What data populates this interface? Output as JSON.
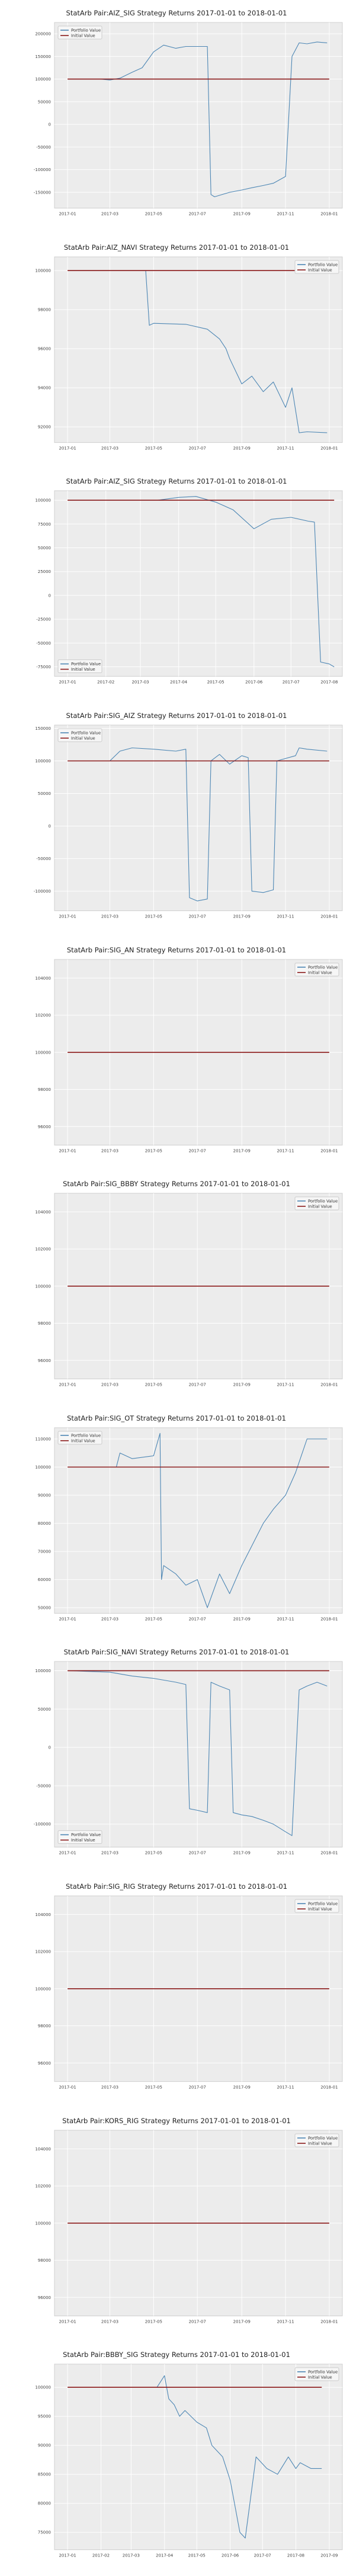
{
  "chart_data": [
    {
      "type": "line",
      "title": "StatArb Pair:AIZ_SIG Strategy Returns 2017-01-01 to 2018-01-01",
      "x_ticks": [
        "2017-01",
        "2017-03",
        "2017-05",
        "2017-07",
        "2017-09",
        "2017-11",
        "2018-01"
      ],
      "y_ticks": [
        "200000",
        "150000",
        "100000",
        "50000",
        "0",
        "-50000",
        "-100000",
        "-150000"
      ],
      "y_tick_values": [
        200000,
        150000,
        100000,
        50000,
        0,
        -50000,
        -100000,
        -150000
      ],
      "ylim": [
        -185000,
        225000
      ],
      "legend": {
        "position": "top-left",
        "entries": [
          "Portfolio Value",
          "Initial Value"
        ]
      },
      "initial_value": 100000,
      "grid": true,
      "series": [
        {
          "name": "Portfolio Value",
          "x": [
            "2017-01-03",
            "2017-02-15",
            "2017-03-01",
            "2017-03-15",
            "2017-04-01",
            "2017-04-15",
            "2017-05-01",
            "2017-05-15",
            "2017-06-01",
            "2017-06-15",
            "2017-07-01",
            "2017-07-15",
            "2017-07-20",
            "2017-07-25",
            "2017-08-15",
            "2017-09-01",
            "2017-09-15",
            "2017-10-01",
            "2017-10-15",
            "2017-11-01",
            "2017-11-10",
            "2017-11-20",
            "2017-12-01",
            "2017-12-15",
            "2017-12-29"
          ],
          "y": [
            100000,
            100000,
            98000,
            102000,
            115000,
            125000,
            160000,
            175000,
            168000,
            172000,
            172000,
            172000,
            -155000,
            -160000,
            -150000,
            -145000,
            -140000,
            -135000,
            -130000,
            -115000,
            150000,
            180000,
            178000,
            182000,
            180000
          ]
        },
        {
          "name": "Initial Value",
          "x": [
            "2017-01-01",
            "2018-01-01"
          ],
          "y": [
            100000,
            100000
          ]
        }
      ]
    },
    {
      "type": "line",
      "title": "StatArb Pair:AIZ_NAVI Strategy Returns 2017-01-01 to 2018-01-01",
      "x_ticks": [
        "2017-01",
        "2017-03",
        "2017-05",
        "2017-07",
        "2017-09",
        "2017-11",
        "2018-01"
      ],
      "y_ticks": [
        "100000",
        "98000",
        "96000",
        "94000",
        "92000"
      ],
      "y_tick_values": [
        100000,
        98000,
        96000,
        94000,
        92000
      ],
      "ylim": [
        91200,
        100700
      ],
      "legend": {
        "position": "top-right",
        "entries": [
          "Portfolio Value",
          "Initial Value"
        ]
      },
      "initial_value": 100000,
      "grid": true,
      "series": [
        {
          "name": "Portfolio Value",
          "x": [
            "2017-01-03",
            "2017-04-20",
            "2017-04-25",
            "2017-05-01",
            "2017-06-15",
            "2017-07-15",
            "2017-08-01",
            "2017-08-10",
            "2017-08-15",
            "2017-09-01",
            "2017-09-15",
            "2017-10-01",
            "2017-10-15",
            "2017-11-01",
            "2017-11-10",
            "2017-11-20",
            "2017-12-01",
            "2017-12-29"
          ],
          "y": [
            100000,
            100000,
            97200,
            97300,
            97250,
            97000,
            96500,
            96000,
            95500,
            94200,
            94600,
            93800,
            94300,
            93000,
            94000,
            91700,
            91750,
            91700
          ]
        },
        {
          "name": "Initial Value",
          "x": [
            "2017-01-01",
            "2018-01-01"
          ],
          "y": [
            100000,
            100000
          ]
        }
      ]
    },
    {
      "type": "line",
      "title": "StatArb Pair:AIZ_SIG Strategy Returns 2017-01-01 to 2018-01-01",
      "x_ticks": [
        "2017-01",
        "2017-02",
        "2017-03",
        "2017-04",
        "2017-05",
        "2017-06",
        "2017-07",
        "2017-08"
      ],
      "y_ticks": [
        "100000",
        "75000",
        "50000",
        "25000",
        "0",
        "-25000",
        "-50000",
        "-75000"
      ],
      "y_tick_values": [
        100000,
        75000,
        50000,
        25000,
        0,
        -25000,
        -50000,
        -75000
      ],
      "ylim": [
        -85000,
        110000
      ],
      "legend": {
        "position": "bottom-left",
        "entries": [
          "Portfolio Value",
          "Initial Value"
        ]
      },
      "initial_value": 100000,
      "grid": true,
      "series": [
        {
          "name": "Portfolio Value",
          "x": [
            "2017-01-03",
            "2017-03-15",
            "2017-04-01",
            "2017-04-15",
            "2017-05-01",
            "2017-05-15",
            "2017-06-01",
            "2017-06-15",
            "2017-07-01",
            "2017-07-15",
            "2017-07-20",
            "2017-07-25",
            "2017-08-01",
            "2017-08-05"
          ],
          "y": [
            100000,
            100000,
            103000,
            104000,
            98000,
            90000,
            70000,
            80000,
            82000,
            78000,
            77000,
            -70000,
            -72000,
            -75000
          ]
        },
        {
          "name": "Initial Value",
          "x": [
            "2017-01-01",
            "2017-08-05"
          ],
          "y": [
            100000,
            100000
          ]
        }
      ]
    },
    {
      "type": "line",
      "title": "StatArb Pair:SIG_AIZ Strategy Returns 2017-01-01 to 2018-01-01",
      "x_ticks": [
        "2017-01",
        "2017-03",
        "2017-05",
        "2017-07",
        "2017-09",
        "2017-11",
        "2018-01"
      ],
      "y_ticks": [
        "150000",
        "100000",
        "50000",
        "0",
        "-50000",
        "-100000"
      ],
      "y_tick_values": [
        150000,
        100000,
        50000,
        0,
        -50000,
        -100000
      ],
      "ylim": [
        -130000,
        155000
      ],
      "legend": {
        "position": "top-left",
        "entries": [
          "Portfolio Value",
          "Initial Value"
        ]
      },
      "initial_value": 100000,
      "grid": true,
      "series": [
        {
          "name": "Portfolio Value",
          "x": [
            "2017-01-03",
            "2017-03-01",
            "2017-03-15",
            "2017-04-01",
            "2017-05-01",
            "2017-06-01",
            "2017-06-15",
            "2017-06-20",
            "2017-07-01",
            "2017-07-15",
            "2017-07-20",
            "2017-08-01",
            "2017-08-15",
            "2017-09-01",
            "2017-09-10",
            "2017-09-15",
            "2017-10-01",
            "2017-10-15",
            "2017-10-20",
            "2017-11-15",
            "2017-11-20",
            "2017-12-01",
            "2017-12-29"
          ],
          "y": [
            100000,
            100000,
            115000,
            120000,
            118000,
            115000,
            118000,
            -110000,
            -115000,
            -112000,
            100000,
            110000,
            95000,
            108000,
            105000,
            -100000,
            -102000,
            -98000,
            100000,
            108000,
            120000,
            118000,
            115000
          ]
        },
        {
          "name": "Initial Value",
          "x": [
            "2017-01-01",
            "2018-01-01"
          ],
          "y": [
            100000,
            100000
          ]
        }
      ]
    },
    {
      "type": "line",
      "title": "StatArb Pair:SIG_AN Strategy Returns 2017-01-01 to 2018-01-01",
      "x_ticks": [
        "2017-01",
        "2017-03",
        "2017-05",
        "2017-07",
        "2017-09",
        "2017-11",
        "2018-01"
      ],
      "y_ticks": [
        "104000",
        "102000",
        "100000",
        "98000",
        "96000"
      ],
      "y_tick_values": [
        104000,
        102000,
        100000,
        98000,
        96000
      ],
      "ylim": [
        95000,
        105000
      ],
      "legend": {
        "position": "top-right",
        "entries": [
          "Portfolio Value",
          "Initial Value"
        ]
      },
      "initial_value": 100000,
      "grid": true,
      "series": [
        {
          "name": "Portfolio Value",
          "x": [
            "2017-01-03",
            "2017-12-29"
          ],
          "y": [
            100000,
            100000
          ]
        },
        {
          "name": "Initial Value",
          "x": [
            "2017-01-01",
            "2018-01-01"
          ],
          "y": [
            100000,
            100000
          ]
        }
      ]
    },
    {
      "type": "line",
      "title": "StatArb Pair:SIG_BBBY Strategy Returns 2017-01-01 to 2018-01-01",
      "x_ticks": [
        "2017-01",
        "2017-03",
        "2017-05",
        "2017-07",
        "2017-09",
        "2017-11",
        "2018-01"
      ],
      "y_ticks": [
        "104000",
        "102000",
        "100000",
        "98000",
        "96000"
      ],
      "y_tick_values": [
        104000,
        102000,
        100000,
        98000,
        96000
      ],
      "ylim": [
        95000,
        105000
      ],
      "legend": {
        "position": "top-right",
        "entries": [
          "Portfolio Value",
          "Initial Value"
        ]
      },
      "initial_value": 100000,
      "grid": true,
      "series": [
        {
          "name": "Portfolio Value",
          "x": [
            "2017-01-03",
            "2017-12-29"
          ],
          "y": [
            100000,
            100000
          ]
        },
        {
          "name": "Initial Value",
          "x": [
            "2017-01-01",
            "2018-01-01"
          ],
          "y": [
            100000,
            100000
          ]
        }
      ]
    },
    {
      "type": "line",
      "title": "StatArb Pair:SIG_OT Strategy Returns 2017-01-01 to 2018-01-01",
      "x_ticks": [
        "2017-01",
        "2017-03",
        "2017-05",
        "2017-07",
        "2017-09",
        "2017-11",
        "2018-01"
      ],
      "y_ticks": [
        "110000",
        "100000",
        "90000",
        "80000",
        "70000",
        "60000",
        "50000"
      ],
      "y_tick_values": [
        110000,
        100000,
        90000,
        80000,
        70000,
        60000,
        50000
      ],
      "ylim": [
        48000,
        114000
      ],
      "legend": {
        "position": "top-left",
        "entries": [
          "Portfolio Value",
          "Initial Value"
        ]
      },
      "initial_value": 100000,
      "grid": true,
      "series": [
        {
          "name": "Portfolio Value",
          "x": [
            "2017-01-03",
            "2017-03-10",
            "2017-03-15",
            "2017-04-01",
            "2017-05-01",
            "2017-05-10",
            "2017-05-12",
            "2017-05-15",
            "2017-06-01",
            "2017-06-15",
            "2017-07-01",
            "2017-07-15",
            "2017-08-01",
            "2017-08-15",
            "2017-09-01",
            "2017-09-15",
            "2017-10-01",
            "2017-10-15",
            "2017-11-01",
            "2017-11-15",
            "2017-12-01",
            "2017-12-29"
          ],
          "y": [
            100000,
            100000,
            105000,
            103000,
            104000,
            112000,
            60000,
            65000,
            62000,
            58000,
            60000,
            50000,
            62000,
            55000,
            65000,
            72000,
            80000,
            85000,
            90000,
            98000,
            110000,
            110000
          ]
        },
        {
          "name": "Initial Value",
          "x": [
            "2017-01-01",
            "2018-01-01"
          ],
          "y": [
            100000,
            100000
          ]
        }
      ]
    },
    {
      "type": "line",
      "title": "StatArb Pair:SIG_NAVI Strategy Returns 2017-01-01 to 2018-01-01",
      "x_ticks": [
        "2017-01",
        "2017-03",
        "2017-05",
        "2017-07",
        "2017-09",
        "2017-11",
        "2018-01"
      ],
      "y_ticks": [
        "100000",
        "50000",
        "0",
        "-50000",
        "-100000"
      ],
      "y_tick_values": [
        100000,
        50000,
        0,
        -50000,
        -100000
      ],
      "ylim": [
        -130000,
        112000
      ],
      "legend": {
        "position": "bottom-left",
        "entries": [
          "Portfolio Value",
          "Initial Value"
        ]
      },
      "initial_value": 100000,
      "grid": true,
      "series": [
        {
          "name": "Portfolio Value",
          "x": [
            "2017-01-03",
            "2017-03-01",
            "2017-04-01",
            "2017-05-01",
            "2017-06-01",
            "2017-06-15",
            "2017-06-20",
            "2017-07-01",
            "2017-07-15",
            "2017-07-20",
            "2017-08-01",
            "2017-08-15",
            "2017-08-20",
            "2017-09-01",
            "2017-09-15",
            "2017-10-01",
            "2017-10-15",
            "2017-11-01",
            "2017-11-10",
            "2017-11-20",
            "2017-12-01",
            "2017-12-15",
            "2017-12-29"
          ],
          "y": [
            100000,
            98000,
            93000,
            90000,
            85000,
            82000,
            -80000,
            -82000,
            -85000,
            85000,
            80000,
            75000,
            -85000,
            -88000,
            -90000,
            -95000,
            -100000,
            -110000,
            -115000,
            75000,
            80000,
            85000,
            80000
          ]
        },
        {
          "name": "Initial Value",
          "x": [
            "2017-01-01",
            "2018-01-01"
          ],
          "y": [
            100000,
            100000
          ]
        }
      ]
    },
    {
      "type": "line",
      "title": "StatArb Pair:SIG_RIG Strategy Returns 2017-01-01 to 2018-01-01",
      "x_ticks": [
        "2017-01",
        "2017-03",
        "2017-05",
        "2017-07",
        "2017-09",
        "2017-11",
        "2018-01"
      ],
      "y_ticks": [
        "104000",
        "102000",
        "100000",
        "98000",
        "96000"
      ],
      "y_tick_values": [
        104000,
        102000,
        100000,
        98000,
        96000
      ],
      "ylim": [
        95000,
        105000
      ],
      "legend": {
        "position": "top-right",
        "entries": [
          "Portfolio Value",
          "Initial Value"
        ]
      },
      "initial_value": 100000,
      "grid": true,
      "series": [
        {
          "name": "Portfolio Value",
          "x": [
            "2017-01-03",
            "2017-12-29"
          ],
          "y": [
            100000,
            100000
          ]
        },
        {
          "name": "Initial Value",
          "x": [
            "2017-01-01",
            "2018-01-01"
          ],
          "y": [
            100000,
            100000
          ]
        }
      ]
    },
    {
      "type": "line",
      "title": "StatArb Pair:KORS_RIG Strategy Returns 2017-01-01 to 2018-01-01",
      "x_ticks": [
        "2017-01",
        "2017-03",
        "2017-05",
        "2017-07",
        "2017-09",
        "2017-11",
        "2018-01"
      ],
      "y_ticks": [
        "104000",
        "102000",
        "100000",
        "98000",
        "96000"
      ],
      "y_tick_values": [
        104000,
        102000,
        100000,
        98000,
        96000
      ],
      "ylim": [
        95000,
        105000
      ],
      "legend": {
        "position": "top-right",
        "entries": [
          "Portfolio Value",
          "Initial Value"
        ]
      },
      "initial_value": 100000,
      "grid": true,
      "series": [
        {
          "name": "Portfolio Value",
          "x": [
            "2017-01-03",
            "2017-12-29"
          ],
          "y": [
            100000,
            100000
          ]
        },
        {
          "name": "Initial Value",
          "x": [
            "2017-01-01",
            "2018-01-01"
          ],
          "y": [
            100000,
            100000
          ]
        }
      ]
    },
    {
      "type": "line",
      "title": "StatArb Pair:BBBY_SIG Strategy Returns 2017-01-01 to 2018-01-01",
      "x_ticks": [
        "2017-01",
        "2017-02",
        "2017-03",
        "2017-04",
        "2017-05",
        "2017-06",
        "2017-07",
        "2017-08",
        "2017-09"
      ],
      "y_ticks": [
        "100000",
        "95000",
        "90000",
        "85000",
        "80000",
        "75000"
      ],
      "y_tick_values": [
        100000,
        95000,
        90000,
        85000,
        80000,
        75000
      ],
      "ylim": [
        72000,
        104000
      ],
      "legend": {
        "position": "top-right",
        "entries": [
          "Portfolio Value",
          "Initial Value"
        ]
      },
      "initial_value": 100000,
      "grid": true,
      "series": [
        {
          "name": "Portfolio Value",
          "x": [
            "2017-01-03",
            "2017-03-25",
            "2017-04-01",
            "2017-04-05",
            "2017-04-10",
            "2017-04-15",
            "2017-04-20",
            "2017-05-01",
            "2017-05-10",
            "2017-05-15",
            "2017-05-25",
            "2017-06-01",
            "2017-06-05",
            "2017-06-10",
            "2017-06-15",
            "2017-06-25",
            "2017-07-05",
            "2017-07-15",
            "2017-07-25",
            "2017-08-01",
            "2017-08-05",
            "2017-08-15",
            "2017-08-25"
          ],
          "y": [
            100000,
            100000,
            102000,
            98000,
            97000,
            95000,
            96000,
            94000,
            93000,
            90000,
            88000,
            84000,
            80000,
            75000,
            74000,
            88000,
            86000,
            85000,
            88000,
            86000,
            87000,
            86000,
            86000
          ]
        },
        {
          "name": "Initial Value",
          "x": [
            "2017-01-01",
            "2017-08-25"
          ],
          "y": [
            100000,
            100000
          ]
        }
      ]
    }
  ]
}
